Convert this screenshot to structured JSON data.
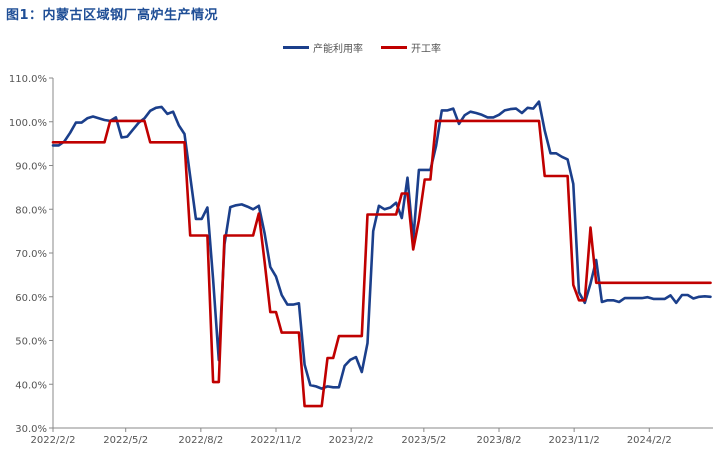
{
  "title": "图1：内蒙古区域钢厂高炉生产情况",
  "colors": {
    "capacity_util": "#1b3f8b",
    "operating_rate": "#c00000",
    "axis": "#888888",
    "title": "#1f4e96"
  },
  "chart_data": {
    "type": "line",
    "title": "图1：内蒙古区域钢厂高炉生产情况",
    "xlabel": "",
    "ylabel": "",
    "ylim": [
      30,
      110
    ],
    "y_ticks": [
      "30.0%",
      "40.0%",
      "50.0%",
      "60.0%",
      "70.0%",
      "80.0%",
      "90.0%",
      "100.0%",
      "110.0%"
    ],
    "x_tick_labels": [
      "2022/2/2",
      "2022/5/2",
      "2022/8/2",
      "2022/11/2",
      "2023/2/2",
      "2023/5/2",
      "2023/8/2",
      "2023/11/2",
      "2024/2/2"
    ],
    "grid": false,
    "legend_position": "top-center",
    "series": [
      {
        "name": "产能利用率",
        "color": "#1b3f8b",
        "points": [
          [
            "2022-02-02",
            94.6
          ],
          [
            "2022-02-09",
            94.6
          ],
          [
            "2022-02-16",
            95.5
          ],
          [
            "2022-02-23",
            97.5
          ],
          [
            "2022-03-02",
            99.8
          ],
          [
            "2022-03-09",
            99.8
          ],
          [
            "2022-03-16",
            100.8
          ],
          [
            "2022-03-23",
            101.2
          ],
          [
            "2022-03-30",
            100.8
          ],
          [
            "2022-04-06",
            100.4
          ],
          [
            "2022-04-13",
            100.2
          ],
          [
            "2022-04-20",
            101.0
          ],
          [
            "2022-04-27",
            96.4
          ],
          [
            "2022-05-04",
            96.6
          ],
          [
            "2022-05-11",
            98.2
          ],
          [
            "2022-05-18",
            99.8
          ],
          [
            "2022-05-25",
            100.8
          ],
          [
            "2022-06-01",
            102.5
          ],
          [
            "2022-06-08",
            103.2
          ],
          [
            "2022-06-15",
            103.4
          ],
          [
            "2022-06-22",
            101.8
          ],
          [
            "2022-06-29",
            102.3
          ],
          [
            "2022-07-06",
            99.2
          ],
          [
            "2022-07-13",
            97.2
          ],
          [
            "2022-07-20",
            87.5
          ],
          [
            "2022-07-27",
            77.8
          ],
          [
            "2022-08-03",
            77.8
          ],
          [
            "2022-08-10",
            80.4
          ],
          [
            "2022-08-17",
            64.0
          ],
          [
            "2022-08-24",
            45.5
          ],
          [
            "2022-08-31",
            72.0
          ],
          [
            "2022-09-07",
            80.5
          ],
          [
            "2022-09-14",
            80.9
          ],
          [
            "2022-09-21",
            81.1
          ],
          [
            "2022-09-28",
            80.6
          ],
          [
            "2022-10-05",
            80.0
          ],
          [
            "2022-10-12",
            80.8
          ],
          [
            "2022-10-19",
            74.5
          ],
          [
            "2022-10-26",
            66.8
          ],
          [
            "2022-11-02",
            64.6
          ],
          [
            "2022-11-09",
            60.4
          ],
          [
            "2022-11-16",
            58.2
          ],
          [
            "2022-11-23",
            58.2
          ],
          [
            "2022-11-30",
            58.5
          ],
          [
            "2022-12-07",
            44.5
          ],
          [
            "2022-12-14",
            39.8
          ],
          [
            "2022-12-21",
            39.5
          ],
          [
            "2022-12-28",
            39.0
          ],
          [
            "2023-01-04",
            39.5
          ],
          [
            "2023-01-11",
            39.3
          ],
          [
            "2023-01-18",
            39.3
          ],
          [
            "2023-01-25",
            44.2
          ],
          [
            "2023-02-01",
            45.6
          ],
          [
            "2023-02-08",
            46.2
          ],
          [
            "2023-02-15",
            42.8
          ],
          [
            "2023-02-22",
            49.4
          ],
          [
            "2023-03-01",
            75.0
          ],
          [
            "2023-03-08",
            80.8
          ],
          [
            "2023-03-15",
            80.0
          ],
          [
            "2023-03-22",
            80.4
          ],
          [
            "2023-03-29",
            81.5
          ],
          [
            "2023-04-05",
            78.0
          ],
          [
            "2023-04-12",
            87.2
          ],
          [
            "2023-04-19",
            73.0
          ],
          [
            "2023-04-26",
            89.0
          ],
          [
            "2023-05-03",
            89.0
          ],
          [
            "2023-05-10",
            89.0
          ],
          [
            "2023-05-17",
            94.5
          ],
          [
            "2023-05-24",
            102.6
          ],
          [
            "2023-05-31",
            102.6
          ],
          [
            "2023-06-07",
            103.0
          ],
          [
            "2023-06-14",
            99.5
          ],
          [
            "2023-06-21",
            101.5
          ],
          [
            "2023-06-28",
            102.3
          ],
          [
            "2023-07-05",
            102.0
          ],
          [
            "2023-07-12",
            101.6
          ],
          [
            "2023-07-19",
            101.0
          ],
          [
            "2023-07-26",
            101.0
          ],
          [
            "2023-08-02",
            101.6
          ],
          [
            "2023-08-09",
            102.6
          ],
          [
            "2023-08-16",
            102.9
          ],
          [
            "2023-08-23",
            103.0
          ],
          [
            "2023-08-30",
            102.0
          ],
          [
            "2023-09-06",
            103.2
          ],
          [
            "2023-09-13",
            103.0
          ],
          [
            "2023-09-20",
            104.6
          ],
          [
            "2023-09-27",
            98.0
          ],
          [
            "2023-10-04",
            92.8
          ],
          [
            "2023-10-11",
            92.8
          ],
          [
            "2023-10-18",
            92.0
          ],
          [
            "2023-10-25",
            91.4
          ],
          [
            "2023-11-01",
            85.8
          ],
          [
            "2023-11-08",
            61.0
          ],
          [
            "2023-11-15",
            58.6
          ],
          [
            "2023-11-22",
            63.0
          ],
          [
            "2023-11-29",
            68.4
          ],
          [
            "2023-12-06",
            58.8
          ],
          [
            "2023-12-13",
            59.2
          ],
          [
            "2023-12-20",
            59.2
          ],
          [
            "2023-12-27",
            58.8
          ],
          [
            "2024-01-03",
            59.7
          ],
          [
            "2024-01-10",
            59.7
          ],
          [
            "2024-01-17",
            59.7
          ],
          [
            "2024-01-24",
            59.7
          ],
          [
            "2024-01-31",
            59.9
          ],
          [
            "2024-02-07",
            59.5
          ],
          [
            "2024-02-14",
            59.5
          ],
          [
            "2024-02-21",
            59.5
          ],
          [
            "2024-02-28",
            60.3
          ],
          [
            "2024-03-06",
            58.6
          ],
          [
            "2024-03-13",
            60.4
          ],
          [
            "2024-03-20",
            60.4
          ],
          [
            "2024-03-27",
            59.6
          ],
          [
            "2024-04-03",
            60.0
          ],
          [
            "2024-04-10",
            60.1
          ],
          [
            "2024-04-17",
            60.0
          ]
        ]
      },
      {
        "name": "开工率",
        "color": "#c00000",
        "points": [
          [
            "2022-02-02",
            95.3
          ],
          [
            "2022-02-09",
            95.3
          ],
          [
            "2022-02-16",
            95.3
          ],
          [
            "2022-02-23",
            95.3
          ],
          [
            "2022-03-02",
            95.3
          ],
          [
            "2022-03-09",
            95.3
          ],
          [
            "2022-03-16",
            95.3
          ],
          [
            "2022-03-23",
            95.3
          ],
          [
            "2022-03-30",
            95.3
          ],
          [
            "2022-04-06",
            95.3
          ],
          [
            "2022-04-13",
            100.2
          ],
          [
            "2022-04-20",
            100.2
          ],
          [
            "2022-04-27",
            100.2
          ],
          [
            "2022-05-04",
            100.2
          ],
          [
            "2022-05-11",
            100.2
          ],
          [
            "2022-05-18",
            100.2
          ],
          [
            "2022-05-25",
            100.2
          ],
          [
            "2022-06-01",
            95.3
          ],
          [
            "2022-06-08",
            95.3
          ],
          [
            "2022-06-15",
            95.3
          ],
          [
            "2022-06-22",
            95.3
          ],
          [
            "2022-06-29",
            95.3
          ],
          [
            "2022-07-06",
            95.3
          ],
          [
            "2022-07-13",
            95.3
          ],
          [
            "2022-07-20",
            74.0
          ],
          [
            "2022-07-27",
            74.0
          ],
          [
            "2022-08-03",
            74.0
          ],
          [
            "2022-08-10",
            74.0
          ],
          [
            "2022-08-17",
            40.5
          ],
          [
            "2022-08-24",
            40.5
          ],
          [
            "2022-08-31",
            74.0
          ],
          [
            "2022-09-07",
            74.0
          ],
          [
            "2022-09-14",
            74.0
          ],
          [
            "2022-09-21",
            74.0
          ],
          [
            "2022-09-28",
            74.0
          ],
          [
            "2022-10-05",
            74.0
          ],
          [
            "2022-10-12",
            79.0
          ],
          [
            "2022-10-19",
            68.0
          ],
          [
            "2022-10-26",
            56.5
          ],
          [
            "2022-11-02",
            56.5
          ],
          [
            "2022-11-09",
            51.8
          ],
          [
            "2022-11-16",
            51.8
          ],
          [
            "2022-11-23",
            51.8
          ],
          [
            "2022-11-30",
            51.8
          ],
          [
            "2022-12-07",
            35.0
          ],
          [
            "2022-12-14",
            35.0
          ],
          [
            "2022-12-21",
            35.0
          ],
          [
            "2022-12-28",
            35.0
          ],
          [
            "2023-01-04",
            46.0
          ],
          [
            "2023-01-11",
            46.0
          ],
          [
            "2023-01-18",
            51.0
          ],
          [
            "2023-01-25",
            51.0
          ],
          [
            "2023-02-01",
            51.0
          ],
          [
            "2023-02-08",
            51.0
          ],
          [
            "2023-02-15",
            51.0
          ],
          [
            "2023-02-22",
            78.8
          ],
          [
            "2023-03-01",
            78.8
          ],
          [
            "2023-03-08",
            78.8
          ],
          [
            "2023-03-15",
            78.8
          ],
          [
            "2023-03-22",
            78.8
          ],
          [
            "2023-03-29",
            78.8
          ],
          [
            "2023-04-05",
            83.6
          ],
          [
            "2023-04-12",
            83.6
          ],
          [
            "2023-04-19",
            70.8
          ],
          [
            "2023-04-26",
            77.5
          ],
          [
            "2023-05-03",
            86.8
          ],
          [
            "2023-05-10",
            86.8
          ],
          [
            "2023-05-17",
            100.2
          ],
          [
            "2023-05-24",
            100.2
          ],
          [
            "2023-05-31",
            100.2
          ],
          [
            "2023-06-07",
            100.2
          ],
          [
            "2023-06-14",
            100.2
          ],
          [
            "2023-06-21",
            100.2
          ],
          [
            "2023-06-28",
            100.2
          ],
          [
            "2023-07-05",
            100.2
          ],
          [
            "2023-07-12",
            100.2
          ],
          [
            "2023-07-19",
            100.2
          ],
          [
            "2023-07-26",
            100.2
          ],
          [
            "2023-08-02",
            100.2
          ],
          [
            "2023-08-09",
            100.2
          ],
          [
            "2023-08-16",
            100.2
          ],
          [
            "2023-08-23",
            100.2
          ],
          [
            "2023-08-30",
            100.2
          ],
          [
            "2023-09-06",
            100.2
          ],
          [
            "2023-09-13",
            100.2
          ],
          [
            "2023-09-20",
            100.2
          ],
          [
            "2023-09-27",
            87.6
          ],
          [
            "2023-10-04",
            87.6
          ],
          [
            "2023-10-11",
            87.6
          ],
          [
            "2023-10-18",
            87.6
          ],
          [
            "2023-10-25",
            87.6
          ],
          [
            "2023-11-01",
            62.7
          ],
          [
            "2023-11-08",
            59.2
          ],
          [
            "2023-11-15",
            59.2
          ],
          [
            "2023-11-22",
            75.8
          ],
          [
            "2023-11-29",
            63.2
          ],
          [
            "2023-12-06",
            63.2
          ],
          [
            "2023-12-13",
            63.2
          ],
          [
            "2023-12-20",
            63.2
          ],
          [
            "2023-12-27",
            63.2
          ],
          [
            "2024-01-03",
            63.2
          ],
          [
            "2024-01-10",
            63.2
          ],
          [
            "2024-01-17",
            63.2
          ],
          [
            "2024-01-24",
            63.2
          ],
          [
            "2024-01-31",
            63.2
          ],
          [
            "2024-02-07",
            63.2
          ],
          [
            "2024-02-14",
            63.2
          ],
          [
            "2024-02-21",
            63.2
          ],
          [
            "2024-02-28",
            63.2
          ],
          [
            "2024-03-06",
            63.2
          ],
          [
            "2024-03-13",
            63.2
          ],
          [
            "2024-03-20",
            63.2
          ],
          [
            "2024-03-27",
            63.2
          ],
          [
            "2024-04-03",
            63.2
          ],
          [
            "2024-04-10",
            63.2
          ],
          [
            "2024-04-17",
            63.2
          ]
        ]
      }
    ]
  }
}
